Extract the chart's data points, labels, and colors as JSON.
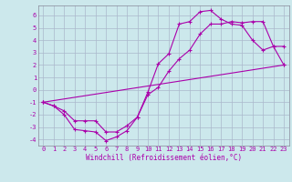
{
  "title": "",
  "xlabel": "Windchill (Refroidissement éolien,°C)",
  "ylabel": "",
  "background_color": "#cce8ec",
  "grid_color": "#aab8cc",
  "line_color": "#aa00aa",
  "xlim": [
    -0.5,
    23.5
  ],
  "ylim": [
    -4.5,
    6.8
  ],
  "yticks": [
    -4,
    -3,
    -2,
    -1,
    0,
    1,
    2,
    3,
    4,
    5,
    6
  ],
  "xticks": [
    0,
    1,
    2,
    3,
    4,
    5,
    6,
    7,
    8,
    9,
    10,
    11,
    12,
    13,
    14,
    15,
    16,
    17,
    18,
    19,
    20,
    21,
    22,
    23
  ],
  "series1_x": [
    0,
    1,
    2,
    3,
    4,
    5,
    6,
    7,
    8,
    9,
    10,
    11,
    12,
    13,
    14,
    15,
    16,
    17,
    18,
    19,
    20,
    21,
    22,
    23
  ],
  "series1_y": [
    -1,
    -1.3,
    -2.0,
    -3.2,
    -3.3,
    -3.4,
    -4.1,
    -3.8,
    -3.3,
    -2.2,
    -0.2,
    2.1,
    2.9,
    5.3,
    5.5,
    6.3,
    6.4,
    5.7,
    5.3,
    5.2,
    4.0,
    3.2,
    3.5,
    3.5
  ],
  "series2_x": [
    0,
    1,
    2,
    3,
    4,
    5,
    6,
    7,
    8,
    9,
    10,
    11,
    12,
    13,
    14,
    15,
    16,
    17,
    18,
    19,
    20,
    21,
    22,
    23
  ],
  "series2_y": [
    -1,
    -1.3,
    -1.7,
    -2.5,
    -2.5,
    -2.5,
    -3.4,
    -3.4,
    -2.9,
    -2.2,
    -0.4,
    0.2,
    1.5,
    2.5,
    3.2,
    4.5,
    5.3,
    5.3,
    5.5,
    5.4,
    5.5,
    5.5,
    3.5,
    2.0
  ],
  "series3_x": [
    0,
    23
  ],
  "series3_y": [
    -1,
    2.0
  ],
  "marker": "+",
  "markersize": 3.5,
  "linewidth": 0.8,
  "tick_fontsize": 5.0,
  "xlabel_fontsize": 5.5
}
